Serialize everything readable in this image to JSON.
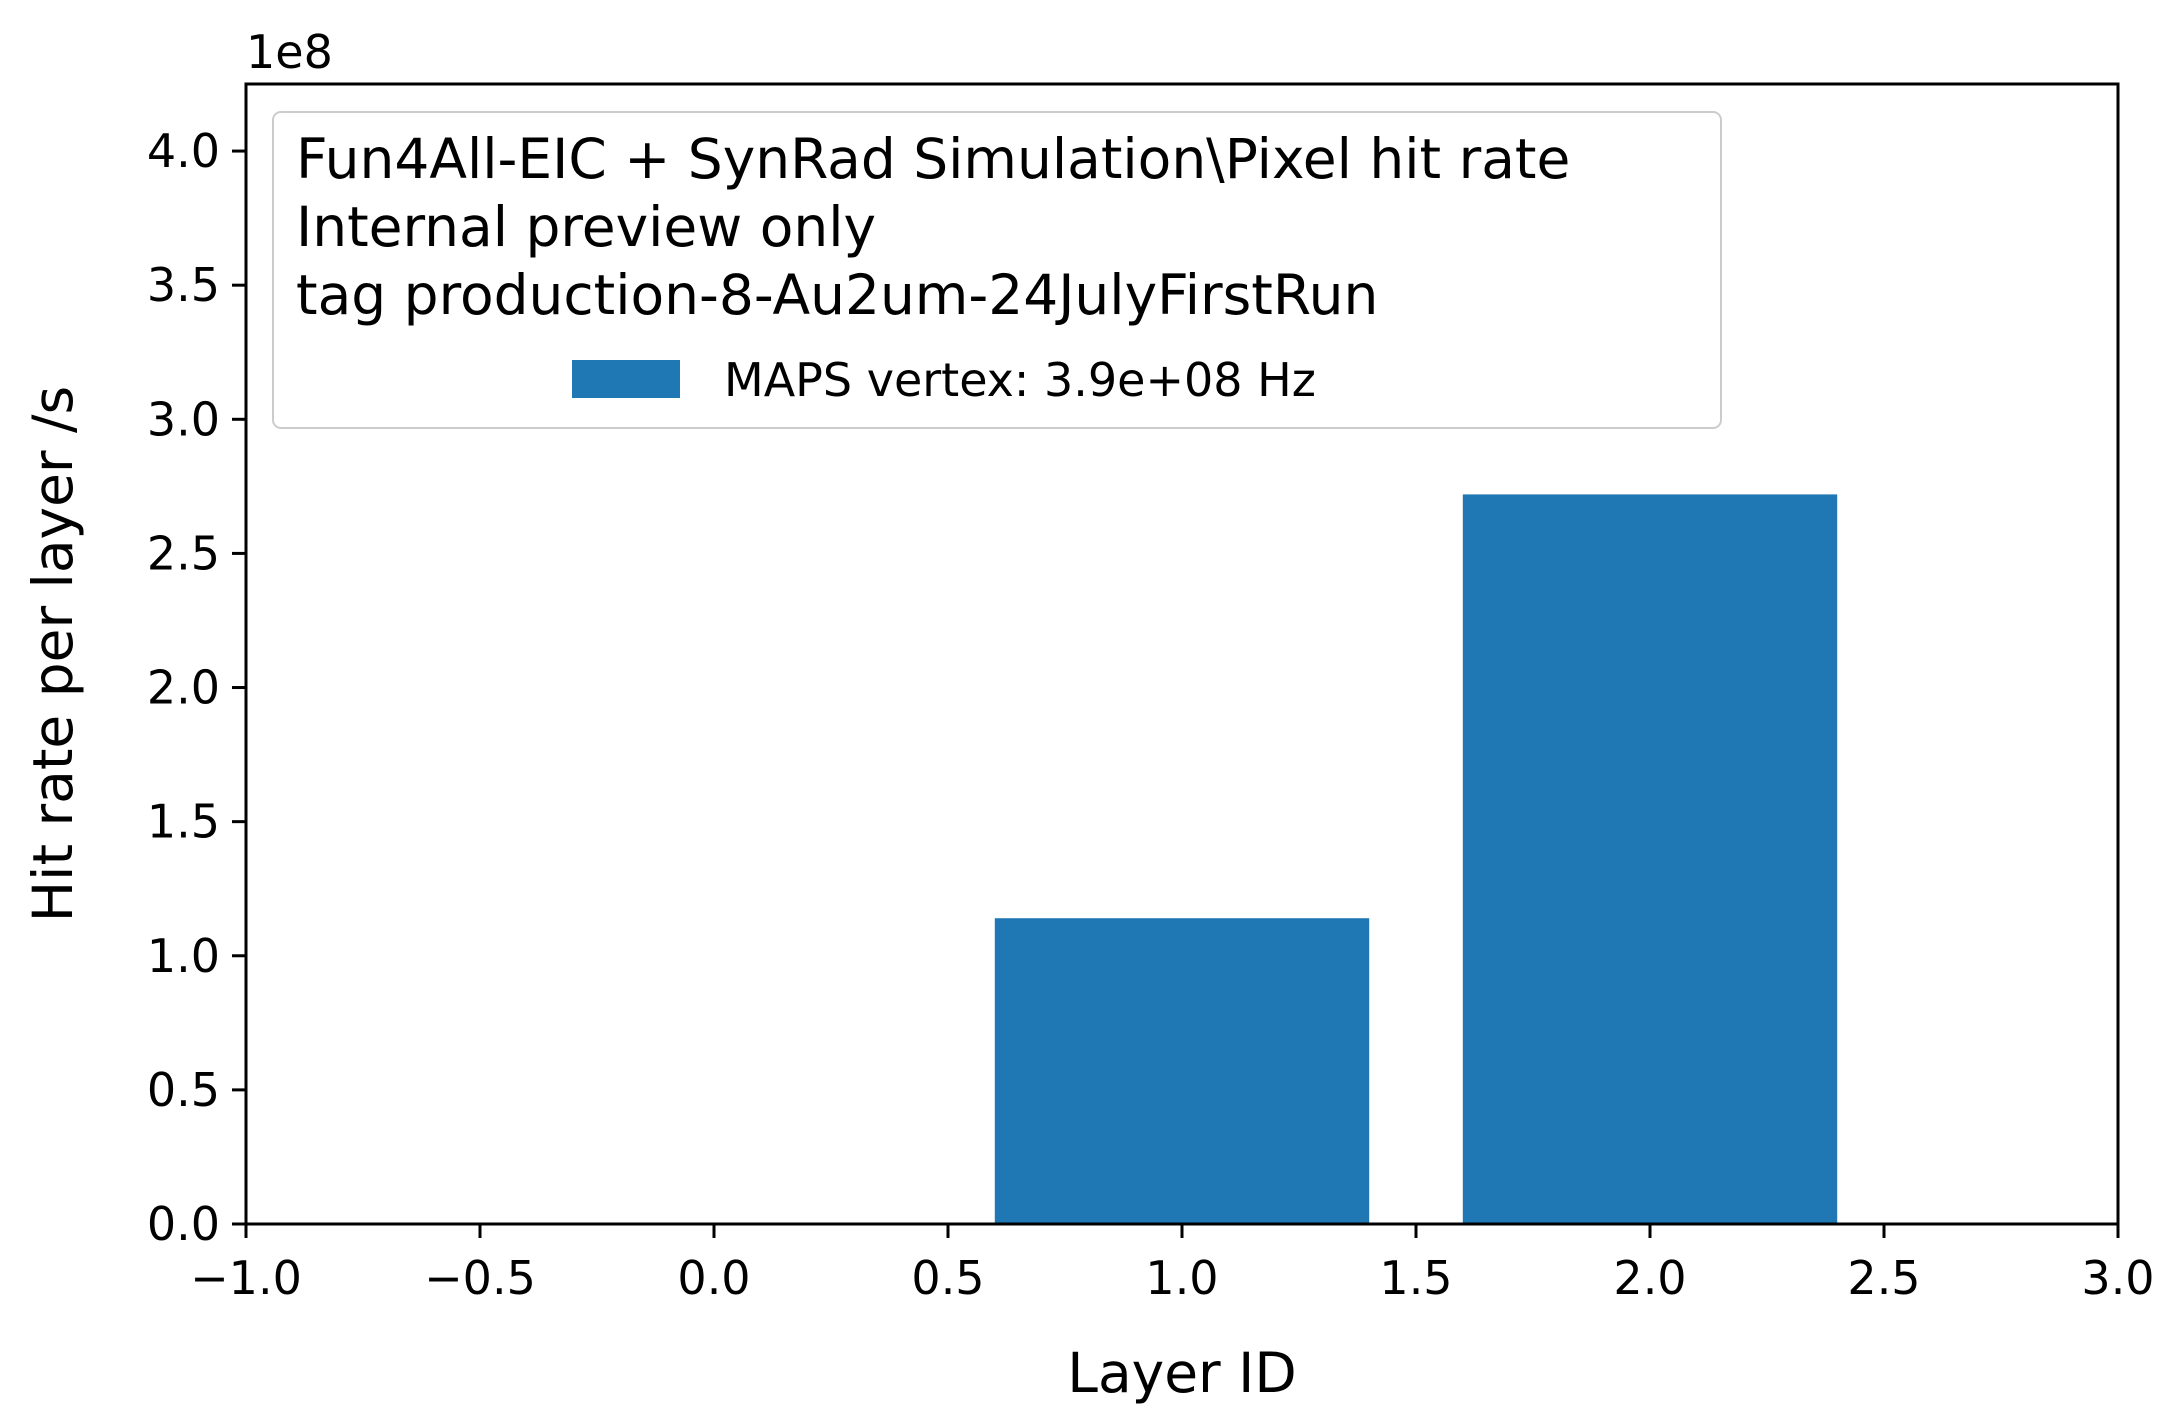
{
  "chart_data": {
    "type": "bar",
    "x": [
      0,
      1,
      2
    ],
    "series": [
      {
        "name": "MAPS vertex: 3.9e+08 Hz",
        "values": [
          0,
          114000000.0,
          272000000.0
        ],
        "color": "#1f77b4"
      }
    ],
    "bar_width": 0.8,
    "title": "",
    "legend_title": [
      "Fun4All-EIC + SynRad Simulation\\Pixel hit rate",
      "Internal preview only",
      "tag production-8-Au2um-24JulyFirstRun"
    ],
    "xlabel": "Layer ID",
    "ylabel": "Hit rate per layer /s",
    "y_offset_label": "1e8",
    "xlim": [
      -1.0,
      3.0
    ],
    "ylim": [
      0,
      425000000.0
    ],
    "xticks": [
      -1.0,
      -0.5,
      0.0,
      0.5,
      1.0,
      1.5,
      2.0,
      2.5,
      3.0
    ],
    "xtick_labels": [
      "−1.0",
      "−0.5",
      "0.0",
      "0.5",
      "1.0",
      "1.5",
      "2.0",
      "2.5",
      "3.0"
    ],
    "yticks": [
      0,
      50000000.0,
      100000000.0,
      150000000.0,
      200000000.0,
      250000000.0,
      300000000.0,
      350000000.0,
      400000000.0
    ],
    "ytick_labels": [
      "0.0",
      "0.5",
      "1.0",
      "1.5",
      "2.0",
      "2.5",
      "3.0",
      "3.5",
      "4.0"
    ],
    "grid": false,
    "legend_position": "upper-left"
  }
}
